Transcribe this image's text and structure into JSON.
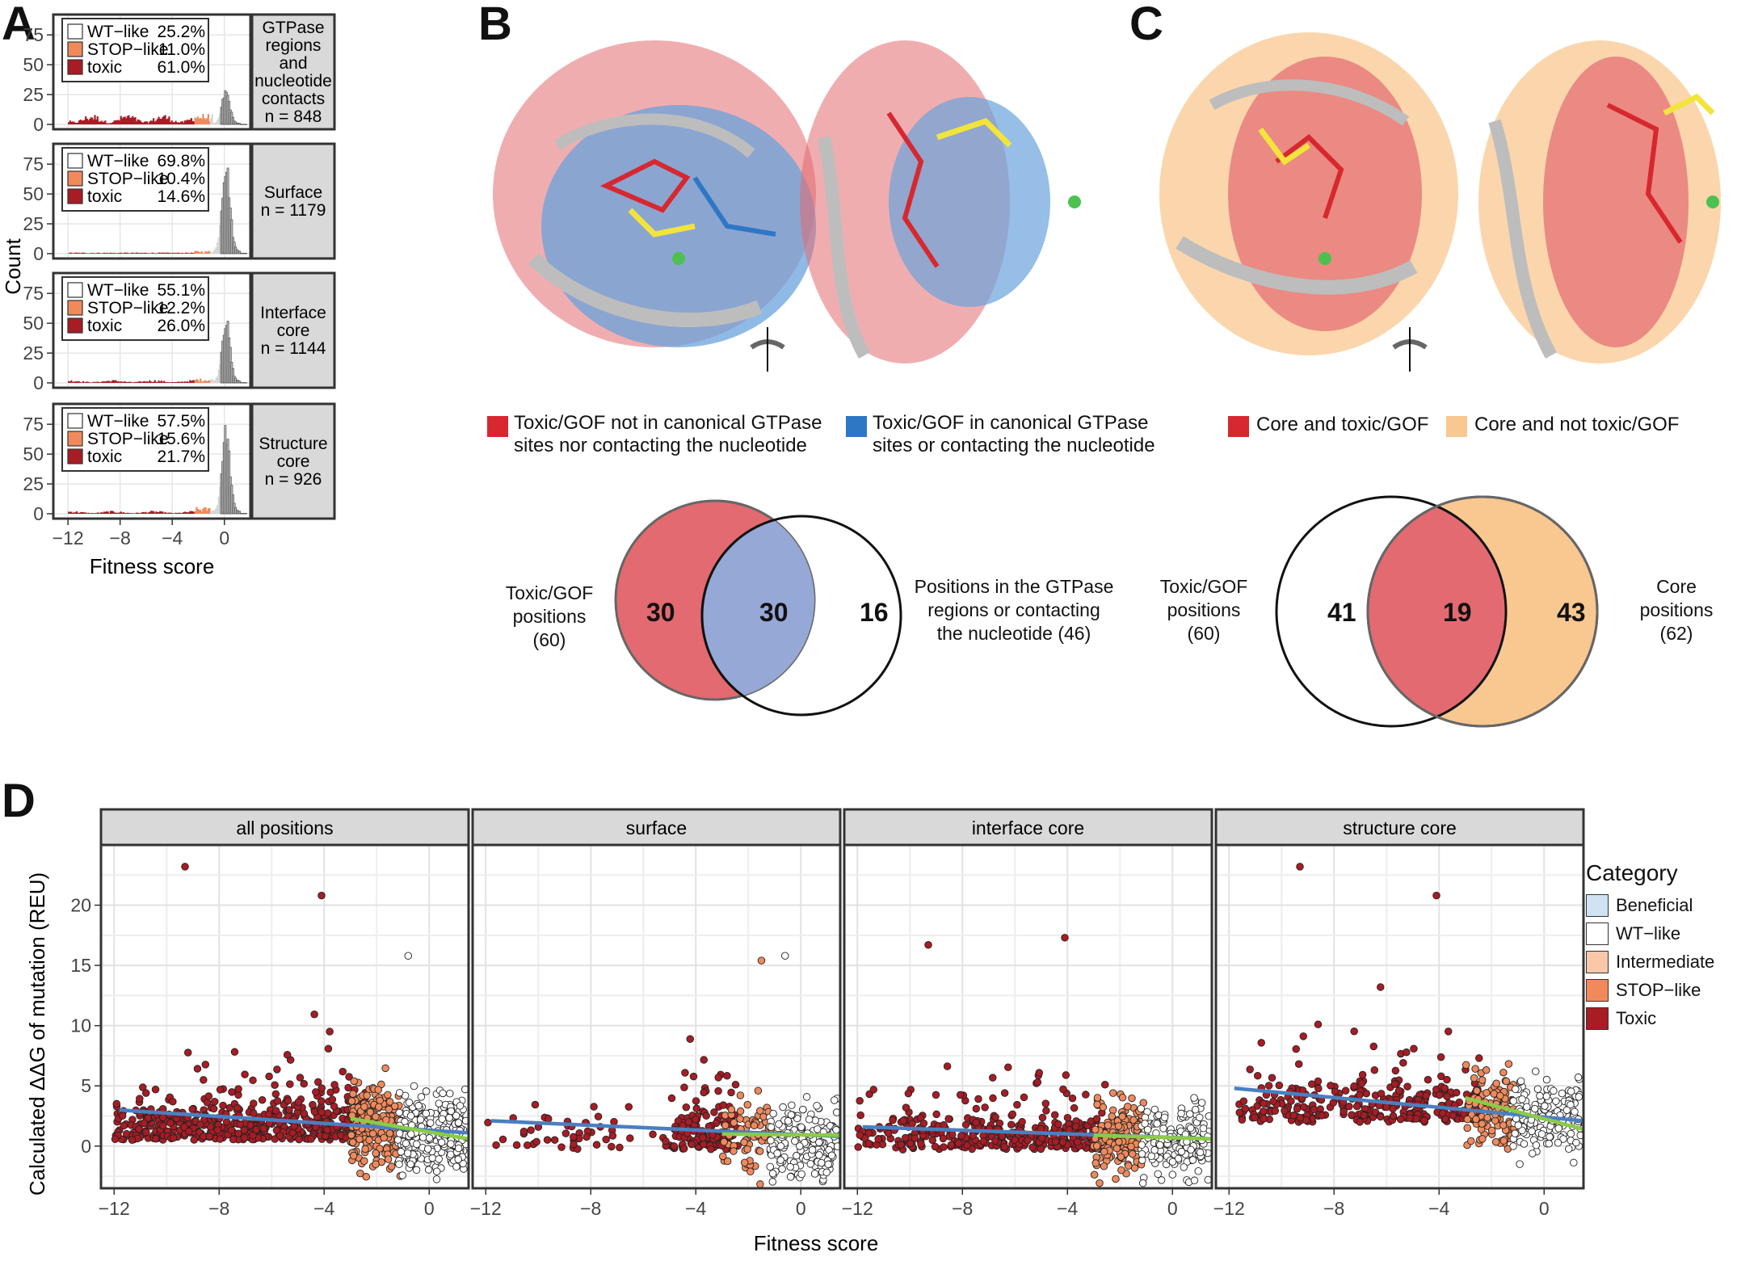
{
  "panel_labels": [
    "A",
    "B",
    "C",
    "D"
  ],
  "colors": {
    "wt_like": "#ffffff",
    "stop_like": "#f08a5d",
    "toxic": "#a81c24",
    "intermediate": "#f9c8a8",
    "beneficial": "#cfe3f2",
    "grey_bar": "#b8b8b8",
    "venn_red": "#e36a70",
    "venn_blue": "#95a8d6",
    "venn_orange": "#f9c890",
    "trend_blue": "#4a7fc1",
    "trend_green": "#8bcb47"
  },
  "panel_a": {
    "y_label": "Count",
    "x_label": "Fitness score",
    "x_ticks": [
      "−12",
      "−8",
      "−4",
      "0"
    ],
    "y_ticks": [
      "0",
      "25",
      "50",
      "75"
    ],
    "legend_labels": [
      "WT−like",
      "STOP−like",
      "toxic"
    ],
    "facets": [
      {
        "strip": [
          "GTPase",
          "regions",
          "and",
          "nucleotide",
          "contacts",
          "n = 848"
        ],
        "pcts": [
          "25.2%",
          "11.0%",
          "61.0%"
        ]
      },
      {
        "strip": [
          "Surface",
          "n = 1179"
        ],
        "pcts": [
          "69.8%",
          "10.4%",
          "14.6%"
        ]
      },
      {
        "strip": [
          "Interface",
          "core",
          "n = 1144"
        ],
        "pcts": [
          "55.1%",
          "12.2%",
          "26.0%"
        ]
      },
      {
        "strip": [
          "Structure",
          "core",
          "n = 926"
        ],
        "pcts": [
          "57.5%",
          "15.6%",
          "21.7%"
        ]
      }
    ]
  },
  "panel_b": {
    "legend": [
      {
        "label_lines": [
          "Toxic/GOF not in canonical GTPase",
          "sites nor contacting the nucleotide"
        ],
        "color": "#d7282f"
      },
      {
        "label_lines": [
          "Toxic/GOF in canonical GTPase",
          "sites or contacting the nucleotide"
        ],
        "color": "#2e77c5"
      }
    ],
    "venn": {
      "left_label": [
        "Toxic/GOF",
        "positions",
        "(60)"
      ],
      "right_label": [
        "Positions in the GTPase",
        "regions or contacting",
        "the nucleotide (46)"
      ],
      "left_only": "30",
      "overlap": "30",
      "right_only": "16"
    }
  },
  "panel_c": {
    "legend": [
      {
        "label": "Core and toxic/GOF",
        "color": "#d7282f"
      },
      {
        "label": "Core and not toxic/GOF",
        "color": "#f9c890"
      }
    ],
    "venn": {
      "left_label": [
        "Toxic/GOF",
        "positions",
        "(60)"
      ],
      "right_label": [
        "Core",
        "positions",
        "(62)"
      ],
      "left_only": "41",
      "overlap": "19",
      "right_only": "43"
    }
  },
  "panel_d": {
    "y_label": "Calculated ΔΔG of mutation (REU)",
    "x_label": "Fitness score",
    "facets": [
      "all positions",
      "surface",
      "interface core",
      "structure core"
    ],
    "x_ticks": [
      "−12",
      "−8",
      "−4",
      "0"
    ],
    "y_ticks": [
      "0",
      "5",
      "10",
      "15",
      "20"
    ],
    "legend_title": "Category",
    "legend_items": [
      "Beneficial",
      "WT−like",
      "Intermediate",
      "STOP−like",
      "Toxic"
    ]
  },
  "chart_data": [
    {
      "type": "bar",
      "panel": "A",
      "title": "",
      "xlabel": "Fitness score",
      "ylabel": "Count",
      "xlim": [
        -13,
        2
      ],
      "ylim": [
        0,
        88
      ],
      "series": [
        {
          "name": "GTPase regions and nucleotide contacts",
          "peak": {
            "x": 0,
            "y": 31
          }
        },
        {
          "name": "Surface",
          "peak": {
            "x": 0,
            "y": 86
          }
        },
        {
          "name": "Interface core",
          "peak": {
            "x": 0,
            "y": 60
          }
        },
        {
          "name": "Structure core",
          "peak": {
            "x": 0,
            "y": 78
          }
        }
      ]
    },
    {
      "type": "scatter",
      "panel": "D",
      "xlabel": "Fitness score",
      "ylabel": "Calculated ΔΔG of mutation (REU)",
      "xlim": [
        -12.5,
        1.5
      ],
      "ylim": [
        -3.5,
        25
      ],
      "trend_lines": [
        {
          "facet": "all positions",
          "blue": [
            [
              -11.8,
              3.0
            ],
            [
              1.5,
              1.1
            ]
          ],
          "green": [
            [
              -3,
              2.3
            ],
            [
              1.5,
              0.6
            ]
          ]
        },
        {
          "facet": "surface",
          "blue": [
            [
              -11.8,
              2.1
            ],
            [
              1.5,
              0.8
            ]
          ],
          "green": [
            [
              -3,
              1.0
            ],
            [
              1.5,
              0.9
            ]
          ]
        },
        {
          "facet": "interface core",
          "blue": [
            [
              -11.8,
              1.6
            ],
            [
              1.5,
              0.6
            ]
          ],
          "green": [
            [
              -3,
              0.9
            ],
            [
              1.5,
              0.6
            ]
          ]
        },
        {
          "facet": "structure core",
          "blue": [
            [
              -11.8,
              4.8
            ],
            [
              1.5,
              2.1
            ]
          ],
          "green": [
            [
              -3,
              4.0
            ],
            [
              1.5,
              1.4
            ]
          ]
        }
      ],
      "notable_points": [
        {
          "facet": "all positions",
          "x": -9.3,
          "y": 23.2
        },
        {
          "facet": "all positions",
          "x": -4.1,
          "y": 20.8
        },
        {
          "facet": "all positions",
          "x": -0.8,
          "y": 15.8
        },
        {
          "facet": "surface",
          "x": -1.5,
          "y": 15.4
        },
        {
          "facet": "surface",
          "x": -0.6,
          "y": 15.8
        },
        {
          "facet": "interface core",
          "x": -9.3,
          "y": 16.7
        },
        {
          "facet": "interface core",
          "x": -4.1,
          "y": 17.3
        },
        {
          "facet": "structure core",
          "x": -9.3,
          "y": 23.2
        },
        {
          "facet": "structure core",
          "x": -4.1,
          "y": 20.8
        }
      ]
    }
  ]
}
